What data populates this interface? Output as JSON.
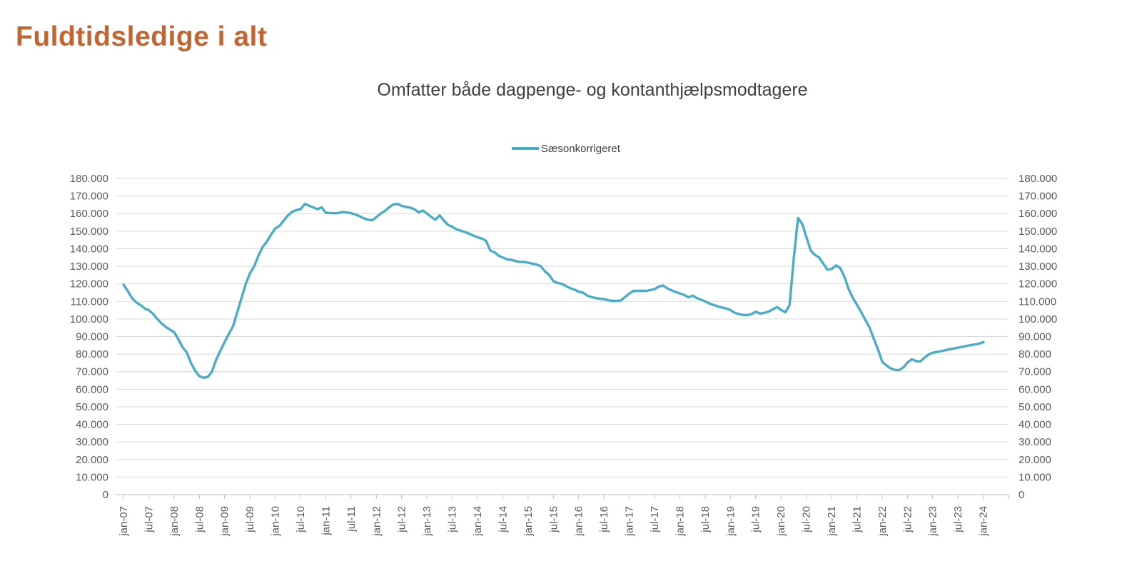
{
  "page": {
    "title": "Fuldtidsledige i alt"
  },
  "chart": {
    "subtitle": "Omfatter både dagpenge- og kontanthjælpsmodtagere",
    "legend_label": "Sæsonkorrigeret"
  },
  "colors": {
    "title": "#C26532",
    "line": "#4BACC6",
    "grid": "#D9D9D9",
    "axis_line": "#BFBFBF",
    "axis_text": "#595959",
    "subtitle_text": "#3F3F3F"
  },
  "chart_data": {
    "type": "line",
    "title": "Omfatter både dagpenge- og kontanthjælpsmodtagere",
    "legend_position": "top",
    "grid": true,
    "ylim": [
      0,
      180000
    ],
    "y_tick_step": 10000,
    "y_axis_sides": "both",
    "y_tick_labels": [
      "180.000",
      "170.000",
      "160.000",
      "150.000",
      "140.000",
      "130.000",
      "120.000",
      "110.000",
      "100.000",
      "90.000",
      "80.000",
      "70.000",
      "60.000",
      "50.000",
      "40.000",
      "30.000",
      "20.000",
      "10.000",
      "0"
    ],
    "x_tick_labels": [
      "jan-07",
      "jul-07",
      "jan-08",
      "jul-08",
      "jan-09",
      "jul-09",
      "jan-10",
      "jul-10",
      "jan-11",
      "jul-11",
      "jan-12",
      "jul-12",
      "jan-13",
      "jul-13",
      "jan-14",
      "jul-14",
      "jan-15",
      "jul-15",
      "jan-16",
      "jul-16",
      "jan-17",
      "jul-17",
      "jan-18",
      "jul-18",
      "jan-19",
      "jul-19",
      "jan-20",
      "jul-20",
      "jan-21",
      "jul-21",
      "jan-22",
      "jul-22",
      "jan-23",
      "jul-23",
      "jan-24"
    ],
    "x_frequency": "monthly",
    "x_start": "jan-07",
    "x_end": "jan-24",
    "series": [
      {
        "name": "Sæsonkorrigeret",
        "color": "#4BACC6",
        "values": [
          119500,
          116000,
          112000,
          109500,
          108000,
          106000,
          105000,
          103000,
          100000,
          97500,
          95500,
          94000,
          92500,
          88500,
          84000,
          81000,
          75000,
          70500,
          67500,
          66500,
          67000,
          70000,
          77000,
          82000,
          87000,
          91500,
          96000,
          104000,
          112000,
          120000,
          126000,
          130000,
          136000,
          141000,
          144000,
          148000,
          151500,
          153000,
          156000,
          159000,
          161000,
          162000,
          162500,
          165500,
          164500,
          163500,
          162500,
          163500,
          160500,
          160300,
          160200,
          160300,
          161000,
          160600,
          160200,
          159500,
          158500,
          157300,
          156500,
          156200,
          158000,
          160000,
          161500,
          163500,
          165200,
          165500,
          164400,
          163800,
          163400,
          162500,
          160700,
          161700,
          160000,
          158000,
          156500,
          159000,
          156000,
          153500,
          152500,
          151000,
          150300,
          149500,
          148500,
          147500,
          146500,
          145800,
          144500,
          139000,
          138000,
          136000,
          135000,
          134000,
          133600,
          133000,
          132500,
          132500,
          132000,
          131500,
          131000,
          130000,
          127000,
          125000,
          121500,
          120500,
          120000,
          118700,
          117500,
          116700,
          115500,
          115000,
          113300,
          112500,
          111900,
          111500,
          111300,
          110600,
          110300,
          110300,
          110500,
          112600,
          114500,
          116000,
          116000,
          116000,
          116000,
          116500,
          117000,
          118500,
          119000,
          117400,
          116300,
          115300,
          114500,
          113700,
          112300,
          113300,
          111900,
          111000,
          110000,
          108800,
          107900,
          107200,
          106500,
          106000,
          105000,
          103500,
          102800,
          102300,
          102200,
          102800,
          104200,
          103100,
          103500,
          104200,
          105500,
          106800,
          105100,
          103800,
          108000,
          135000,
          157500,
          154000,
          146500,
          139000,
          136500,
          135000,
          131500,
          128000,
          128500,
          130500,
          129000,
          124000,
          117000,
          112000,
          108000,
          103800,
          99300,
          95000,
          88500,
          82500,
          75500,
          73500,
          71800,
          71000,
          70900,
          72500,
          75300,
          77100,
          76000,
          75800,
          78000,
          79800,
          80800,
          81200,
          81700,
          82200,
          82800,
          83200,
          83700,
          84100,
          84700,
          85100,
          85500,
          86000,
          86800
        ]
      }
    ]
  }
}
